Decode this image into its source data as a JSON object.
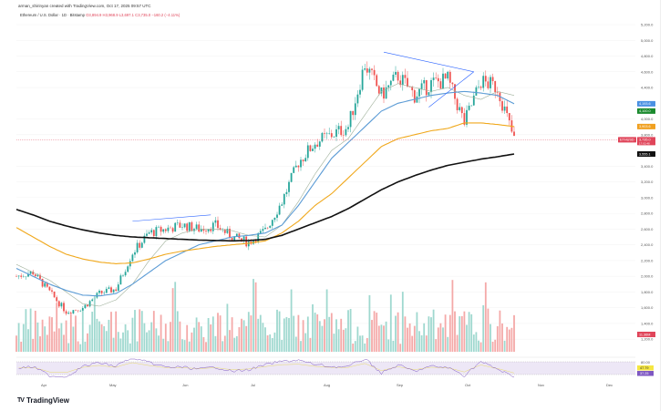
{
  "header": {
    "attribution": "arman_shirinyan created with TradingView.com, Oct 17, 2025 09:57 UTC",
    "symbol": "Ethereum / U.S. Dollar · 1D · Bitstamp",
    "ohlc": "O3,894.9  H3,968.9  L3,697.1  C3,735.0  −160.2 (−4.11%)"
  },
  "logo": "TradingView",
  "chart_data": {
    "type": "candlestick",
    "title": "Ethereum / U.S. Dollar · 1D · Bitstamp",
    "x_months": [
      "Apr",
      "May",
      "Jun",
      "Jul",
      "Aug",
      "Sep",
      "Oct",
      "Nov",
      "Dec"
    ],
    "y_ticks": [
      5200,
      5000,
      4800,
      4600,
      4400,
      4000,
      3800,
      3400,
      3200,
      3000,
      2800,
      2600,
      2400,
      2200,
      2000,
      1800,
      1600,
      1400,
      1200
    ],
    "y_tick_labels": [
      "5,200.0",
      "5,000.0",
      "4,800.0",
      "4,600.0",
      "4,400.0",
      "4,000.0",
      "3,800.0",
      "3,400.0",
      "3,200.0",
      "3,000.0",
      "2,800.0",
      "2,600.0",
      "2,400.0",
      "2,200.0",
      "2,000.0",
      "1,800.0",
      "1,600.0",
      "1,400.0",
      "1,200.0"
    ],
    "ylim": [
      1200,
      5200
    ],
    "weekly_close": [
      2000,
      2050,
      1800,
      1550,
      1600,
      1780,
      1840,
      2300,
      2550,
      2600,
      2650,
      2600,
      2650,
      2500,
      2430,
      2580,
      2950,
      3450,
      3700,
      3800,
      3900,
      4700,
      4300,
      4550,
      4300,
      4450,
      4500,
      3950,
      4480,
      4400,
      3735
    ],
    "ma": [
      {
        "name": "MA20",
        "color": "#9fb09a",
        "values": [
          2150,
          2050,
          1950,
          1800,
          1650,
          1620,
          1700,
          1900,
          2200,
          2450,
          2550,
          2600,
          2600,
          2580,
          2520,
          2500,
          2650,
          2950,
          3300,
          3600,
          3750,
          4050,
          4350,
          4450,
          4400,
          4350,
          4400,
          4300,
          4250,
          4350,
          4300
        ]
      },
      {
        "name": "MA50",
        "color": "#5b9bd5",
        "label": "4,193.6",
        "values": [
          2100,
          2000,
          1900,
          1820,
          1760,
          1750,
          1780,
          1900,
          2050,
          2200,
          2300,
          2400,
          2450,
          2500,
          2520,
          2550,
          2650,
          2900,
          3200,
          3500,
          3700,
          3900,
          4100,
          4200,
          4250,
          4300,
          4330,
          4350,
          4330,
          4300,
          4193.6
        ]
      },
      {
        "name": "MA100",
        "color": "#f0a81c",
        "label": "3,903.6",
        "values": [
          2620,
          2500,
          2380,
          2280,
          2220,
          2180,
          2160,
          2170,
          2220,
          2280,
          2320,
          2350,
          2380,
          2400,
          2420,
          2450,
          2550,
          2700,
          2900,
          3050,
          3250,
          3450,
          3650,
          3750,
          3800,
          3850,
          3880,
          3950,
          3950,
          3930,
          3903.6
        ]
      },
      {
        "name": "MA200",
        "color": "#111111",
        "label": "3,555.1",
        "values": [
          2850,
          2780,
          2700,
          2640,
          2590,
          2550,
          2520,
          2500,
          2490,
          2480,
          2470,
          2460,
          2455,
          2450,
          2455,
          2470,
          2520,
          2600,
          2680,
          2760,
          2860,
          2980,
          3100,
          3200,
          3280,
          3350,
          3410,
          3450,
          3490,
          3520,
          3555.1
        ]
      }
    ],
    "trendlines": [
      {
        "from": [
          "May 8",
          2700
        ],
        "to": [
          "Jun 10",
          2780
        ]
      },
      {
        "from": [
          "Aug 22",
          4850
        ],
        "to": [
          "Sep 29",
          4600
        ]
      },
      {
        "from": [
          "Sep 10",
          4150
        ],
        "to": [
          "Sep 29",
          4600
        ]
      }
    ],
    "price_tags": [
      {
        "text": "4,193.6",
        "color": "#4a90e2"
      },
      {
        "text": "4,100.0",
        "color": "#1b8a2e"
      },
      {
        "text": "3,903.6",
        "color": "#f0a020"
      },
      {
        "text": "3,735.0",
        "color": "#e0455a",
        "sub": "17:02:48"
      },
      {
        "text": "3,555.1",
        "color": "#111111"
      },
      {
        "text": "ETHUSD",
        "color": "#e0455a"
      }
    ],
    "volume": {
      "label": "11.36M",
      "color": "#e0455a"
    },
    "rsi": {
      "upper": "80.00",
      "values": [
        "47.79",
        "37.25"
      ],
      "colors": [
        "#f5e642",
        "#7e57c2"
      ]
    }
  }
}
